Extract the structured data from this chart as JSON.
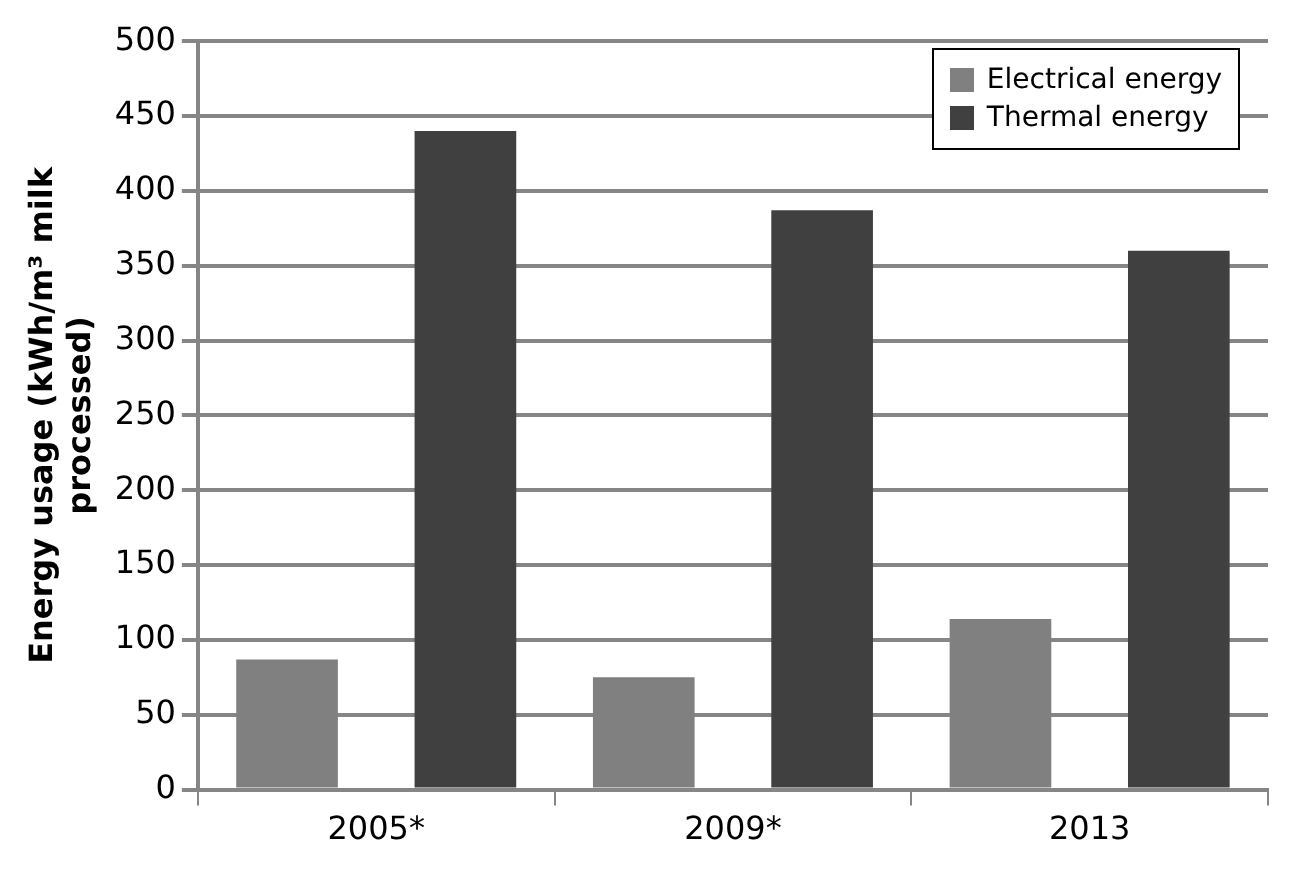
{
  "chart_data": {
    "type": "bar",
    "ylabel": "Energy usage (kWh/m³ milk\nprocessed)",
    "categories": [
      "2005*",
      "2009*",
      "2013"
    ],
    "series": [
      {
        "name": "Electrical energy",
        "color": "#808080",
        "values": [
          87,
          75,
          114
        ]
      },
      {
        "name": "Thermal energy",
        "color": "#404040",
        "values": [
          440,
          387,
          360
        ]
      }
    ],
    "ylim": [
      0,
      500
    ],
    "yticks": [
      0,
      50,
      100,
      150,
      200,
      250,
      300,
      350,
      400,
      450,
      500
    ],
    "grid": "y",
    "legend": "top right"
  }
}
